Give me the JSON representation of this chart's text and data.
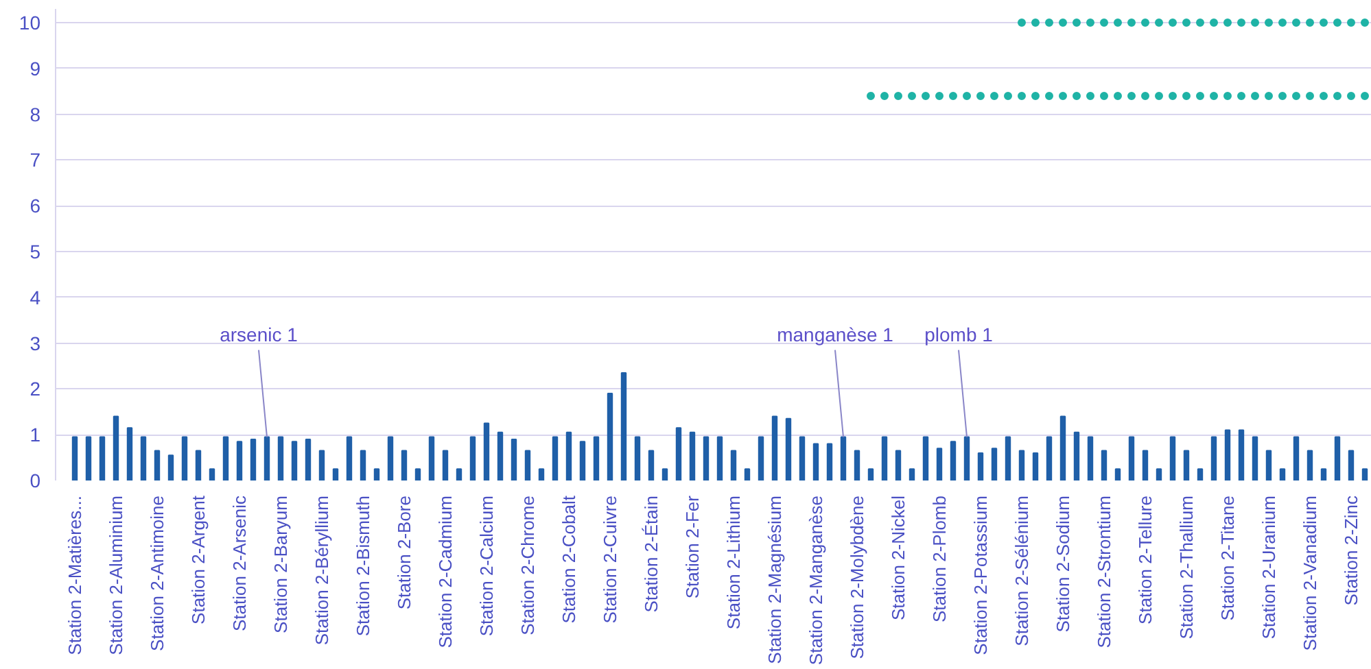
{
  "chart_data": {
    "type": "bar",
    "categories": [
      "Station 2-Matières...",
      null,
      null,
      "Station 2-Aluminium",
      null,
      null,
      "Station 2-Antimoine",
      null,
      null,
      "Station 2-Argent",
      null,
      null,
      "Station 2-Arsenic",
      null,
      null,
      "Station 2-Baryum",
      null,
      null,
      "Station 2-Béryllium",
      null,
      null,
      "Station 2-Bismuth",
      null,
      null,
      "Station 2-Bore",
      null,
      null,
      "Station 2-Cadmium",
      null,
      null,
      "Station 2-Calcium",
      null,
      null,
      "Station 2-Chrome",
      null,
      null,
      "Station 2-Cobalt",
      null,
      null,
      "Station 2-Cuivre",
      null,
      null,
      "Station 2-Étain",
      null,
      null,
      "Station 2-Fer",
      null,
      null,
      "Station 2-Lithium",
      null,
      null,
      "Station 2-Magnésium",
      null,
      null,
      "Station 2-Manganèse",
      null,
      null,
      "Station 2-Molybdène",
      null,
      null,
      "Station 2-Nickel",
      null,
      null,
      "Station 2-Plomb",
      null,
      null,
      "Station 2-Potassium",
      null,
      null,
      "Station 2-Sélénium",
      null,
      null,
      "Station 2-Sodium",
      null,
      null,
      "Station 2-Strontium",
      null,
      null,
      "Station 2-Tellure",
      null,
      null,
      "Station 2-Thallium",
      null,
      null,
      "Station 2-Titane",
      null,
      null,
      "Station 2-Uranium",
      null,
      null,
      "Station 2-Vanadium",
      null,
      null,
      "Station 2-Zinc",
      null
    ],
    "series": [
      {
        "color": "#1f5fa8",
        "values": [
          0.95,
          0.95,
          0.95,
          1.4,
          1.15,
          0.95,
          0.65,
          0.55,
          0.95,
          0.65,
          0.25,
          0.95,
          0.85,
          0.9,
          0.95,
          0.95,
          0.85,
          0.9,
          0.65,
          0.25,
          0.95,
          0.65,
          0.25,
          0.95,
          0.65,
          0.25,
          0.95,
          0.65,
          0.25,
          0.95,
          1.25,
          1.05,
          0.9,
          0.65,
          0.25,
          0.95,
          1.05,
          0.85,
          0.95,
          1.9,
          2.35,
          0.95,
          0.65,
          0.25,
          1.15,
          1.05,
          0.95,
          0.95,
          0.65,
          0.25,
          0.95,
          1.4,
          1.35,
          0.95,
          0.8,
          0.8,
          0.95,
          0.65,
          0.25,
          0.95,
          0.65,
          0.25,
          0.95,
          0.7,
          0.85,
          0.95,
          0.6,
          0.7,
          0.95,
          0.65,
          0.6,
          0.95,
          1.4,
          1.05,
          0.95,
          0.65,
          0.25,
          0.95,
          0.65,
          0.25,
          0.95,
          0.65,
          0.25,
          0.95,
          1.1,
          1.1,
          0.95,
          0.65,
          0.25,
          0.95,
          0.65,
          0.25,
          0.95,
          0.65,
          0.25
        ],
        "value_labels": [
          null,
          null,
          null,
          null,
          null,
          null,
          null,
          null,
          null,
          null,
          null,
          null,
          null,
          null,
          "arsenic 1",
          null,
          null,
          null,
          null,
          null,
          null,
          null,
          null,
          null,
          null,
          null,
          null,
          null,
          null,
          null,
          null,
          null,
          null,
          null,
          null,
          null,
          null,
          null,
          null,
          null,
          null,
          null,
          null,
          null,
          null,
          null,
          null,
          null,
          null,
          null,
          null,
          null,
          null,
          null,
          null,
          null,
          "manganèse 1",
          null,
          null,
          null,
          null,
          null,
          null,
          null,
          null,
          "plomb 1",
          null,
          null,
          null,
          null,
          null,
          null,
          null,
          null,
          null,
          null,
          null,
          null,
          null,
          null,
          null,
          null,
          null,
          null,
          null,
          null,
          null,
          null,
          null,
          null,
          null,
          null,
          null,
          null,
          null
        ]
      },
      {
        "type": "scatter",
        "color": "#1fb3a6",
        "marker": "circle",
        "values": [
          null,
          null,
          null,
          null,
          null,
          null,
          null,
          null,
          null,
          null,
          null,
          null,
          null,
          null,
          null,
          null,
          null,
          null,
          null,
          null,
          null,
          null,
          null,
          null,
          null,
          null,
          null,
          null,
          null,
          null,
          null,
          null,
          null,
          null,
          null,
          null,
          null,
          null,
          null,
          null,
          null,
          null,
          null,
          null,
          null,
          null,
          null,
          null,
          null,
          null,
          null,
          null,
          null,
          null,
          null,
          null,
          null,
          null,
          8.4,
          8.4,
          8.4,
          8.4,
          8.4,
          8.4,
          8.4,
          8.4,
          8.4,
          8.4,
          8.4,
          8.4,
          8.4,
          8.4,
          8.4,
          8.4,
          8.4,
          8.4,
          8.4,
          8.4,
          8.4,
          8.4,
          8.4,
          8.4,
          8.4,
          8.4,
          8.4,
          8.4,
          8.4,
          8.4,
          8.4,
          8.4,
          8.4,
          8.4,
          8.4,
          8.4,
          8.4
        ]
      },
      {
        "type": "scatter",
        "color": "#1fb3a6",
        "marker": "circle",
        "values": [
          null,
          null,
          null,
          null,
          null,
          null,
          null,
          null,
          null,
          null,
          null,
          null,
          null,
          null,
          null,
          null,
          null,
          null,
          null,
          null,
          null,
          null,
          null,
          null,
          null,
          null,
          null,
          null,
          null,
          null,
          null,
          null,
          null,
          null,
          null,
          null,
          null,
          null,
          null,
          null,
          null,
          null,
          null,
          null,
          null,
          null,
          null,
          null,
          null,
          null,
          null,
          null,
          null,
          null,
          null,
          null,
          null,
          null,
          null,
          null,
          null,
          null,
          null,
          null,
          null,
          null,
          null,
          null,
          null,
          10,
          10,
          10,
          10,
          10,
          10,
          10,
          10,
          10,
          10,
          10,
          10,
          10,
          10,
          10,
          10,
          10,
          10,
          10,
          10,
          10,
          10,
          10,
          10,
          10,
          10
        ]
      }
    ],
    "ylim": [
      0,
      10.3
    ],
    "yticks": [
      0,
      1,
      2,
      3,
      4,
      5,
      6,
      7,
      8,
      9,
      10
    ],
    "grid": "y"
  }
}
